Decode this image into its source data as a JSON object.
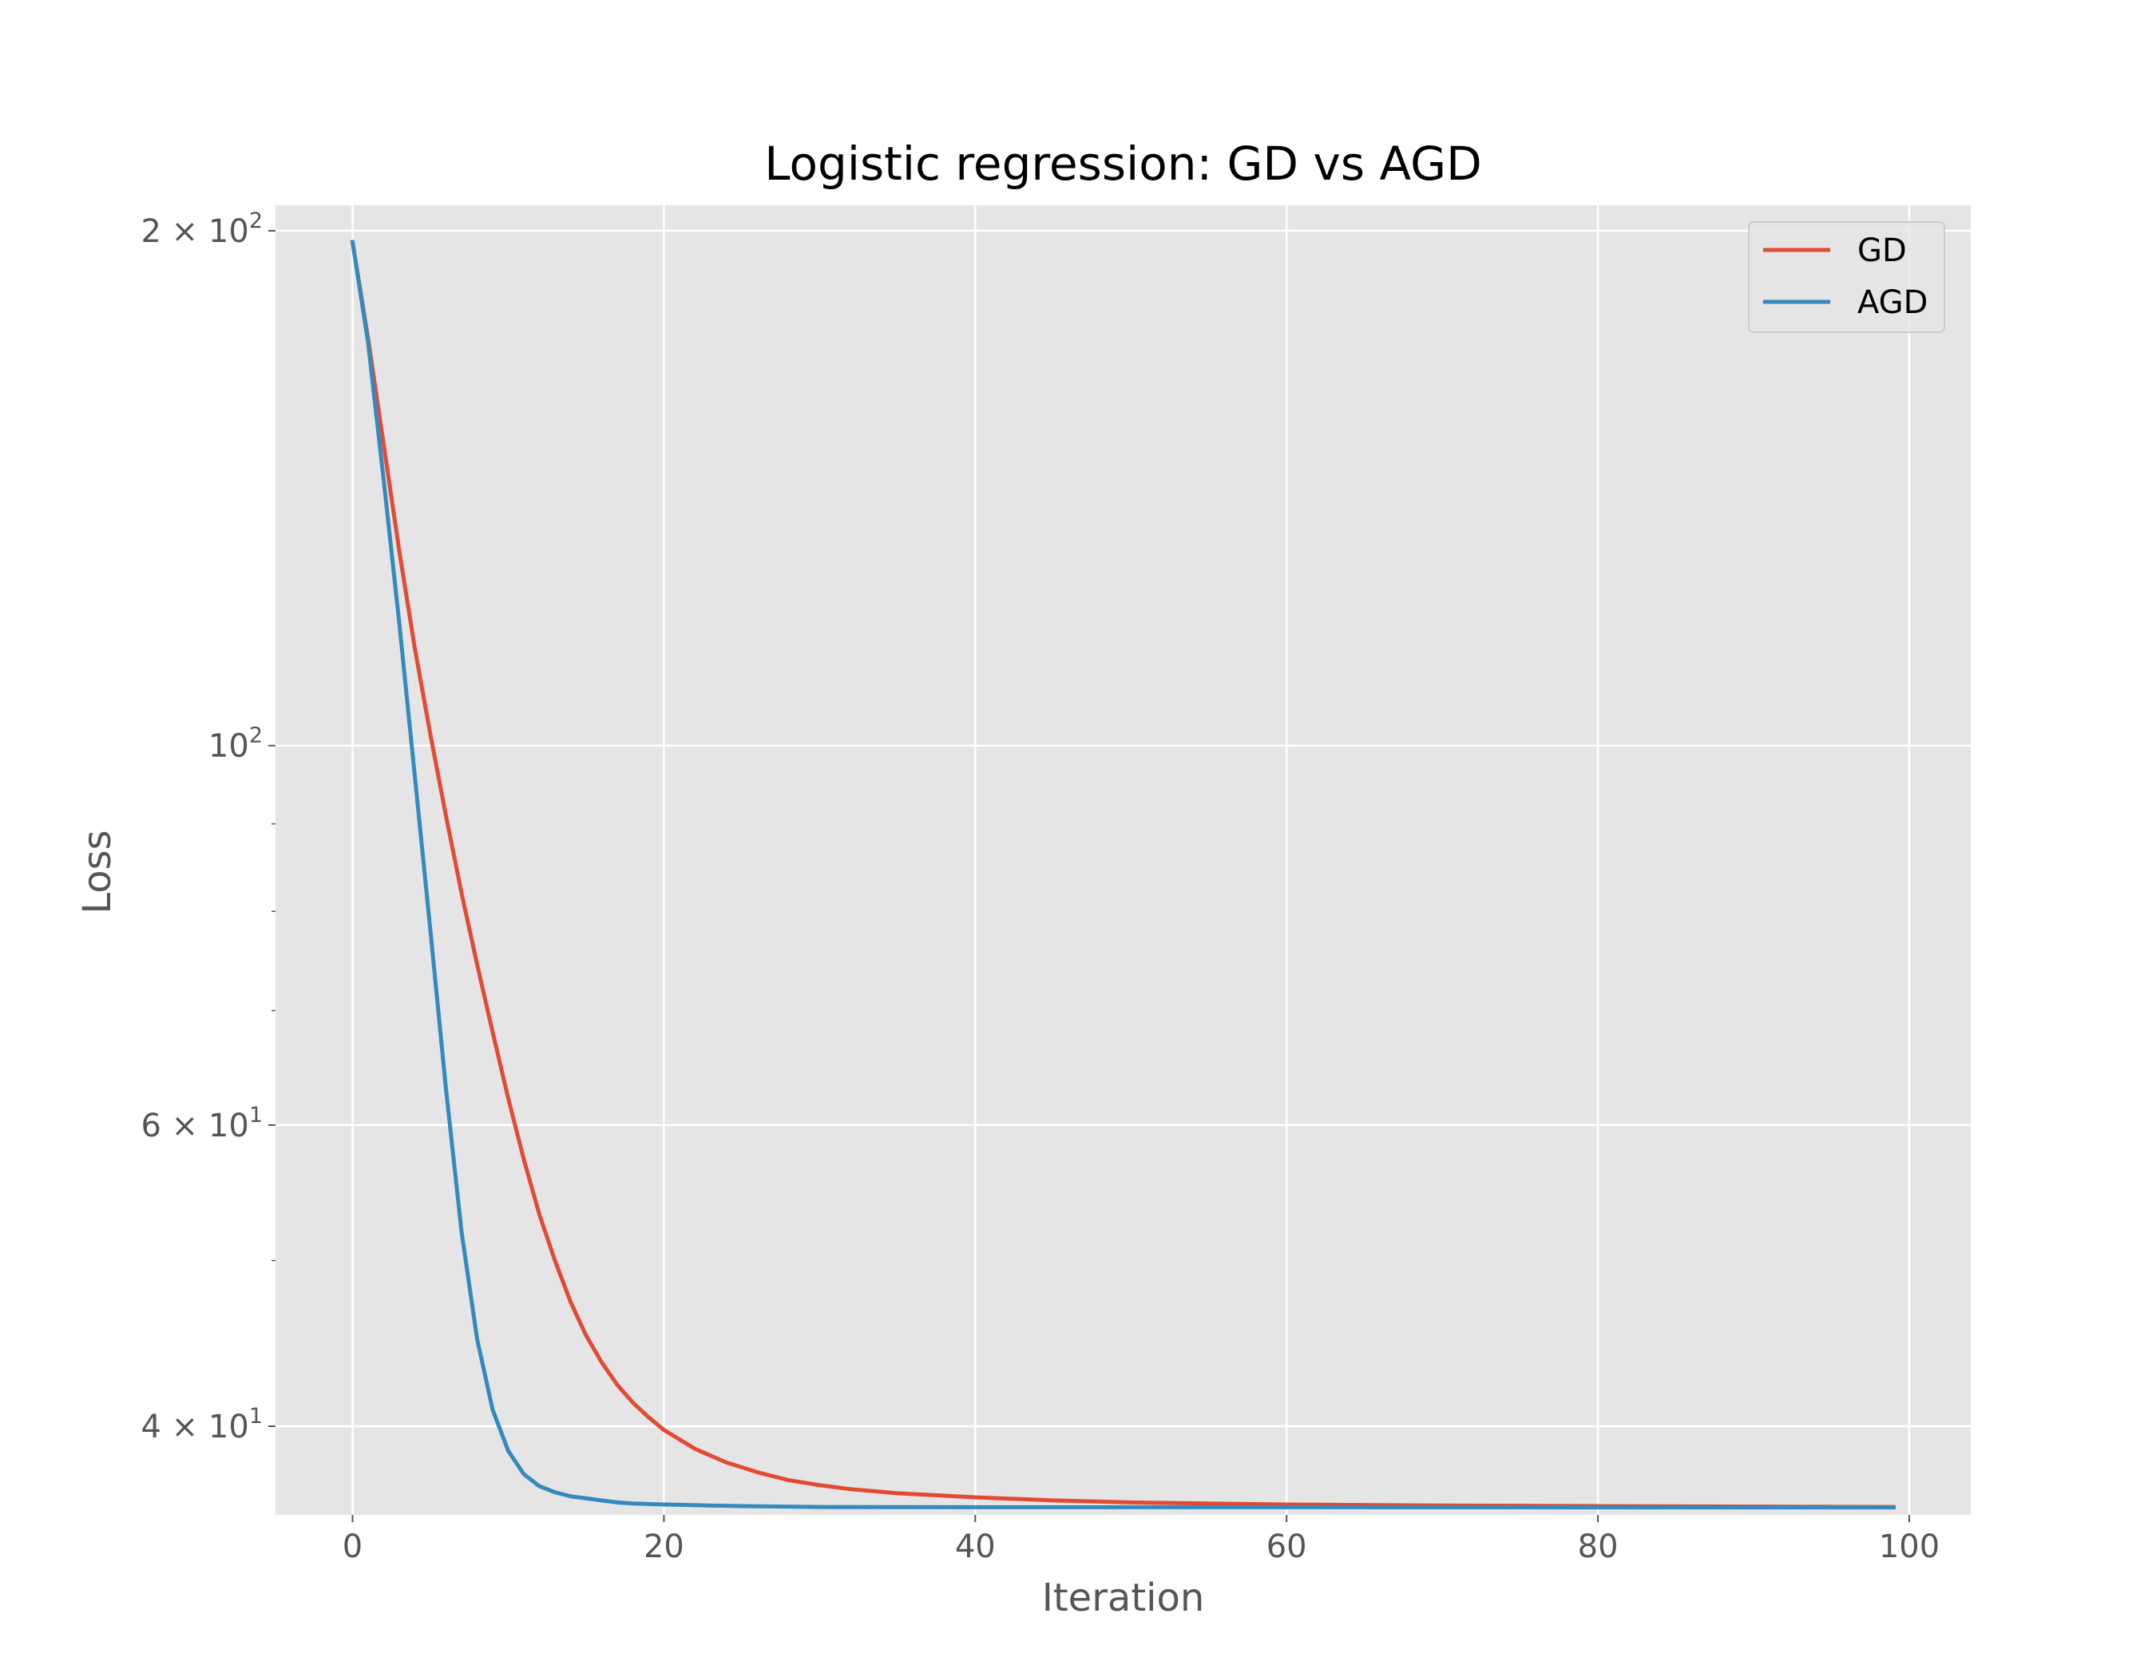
{
  "chart_data": {
    "type": "line",
    "title": "Logistic regression: GD vs AGD",
    "xlabel": "Iteration",
    "ylabel": "Loss",
    "xlim": [
      -4.95,
      103.95
    ],
    "ylim": [
      35.5,
      207
    ],
    "yscale": "log",
    "grid": true,
    "legend_position": "top-right",
    "x_ticks": [
      0,
      20,
      40,
      60,
      80,
      100
    ],
    "x_tick_labels": [
      "0",
      "20",
      "40",
      "60",
      "80",
      "100"
    ],
    "y_major_ticks": [
      {
        "value": 200,
        "mantissa": "2",
        "base": "10",
        "exp": "2"
      },
      {
        "value": 100,
        "mantissa": "",
        "base": "10",
        "exp": "2"
      },
      {
        "value": 60,
        "mantissa": "6",
        "base": "10",
        "exp": "1"
      },
      {
        "value": 40,
        "mantissa": "4",
        "base": "10",
        "exp": "1"
      }
    ],
    "y_minor_ticks": [
      90,
      80,
      70,
      50
    ],
    "colors": {
      "background": "#e5e5e5",
      "grid": "#ffffff",
      "GD": "#e24a33",
      "AGD": "#348abd"
    },
    "series": [
      {
        "name": "GD",
        "color": "#e24a33",
        "points": [
          [
            0,
            197
          ],
          [
            1,
            173
          ],
          [
            2,
            150
          ],
          [
            3,
            130
          ],
          [
            4,
            114
          ],
          [
            5,
            101.5
          ],
          [
            6,
            91
          ],
          [
            7,
            82
          ],
          [
            8,
            74.5
          ],
          [
            9,
            68
          ],
          [
            10,
            62.2
          ],
          [
            11,
            57.3
          ],
          [
            12,
            53.2
          ],
          [
            13,
            50
          ],
          [
            14,
            47.3
          ],
          [
            15,
            45.2
          ],
          [
            16,
            43.6
          ],
          [
            17,
            42.3
          ],
          [
            18,
            41.3
          ],
          [
            19,
            40.5
          ],
          [
            20,
            39.8
          ],
          [
            22,
            38.8
          ],
          [
            24,
            38.1
          ],
          [
            26,
            37.6
          ],
          [
            28,
            37.2
          ],
          [
            30,
            36.95
          ],
          [
            32,
            36.75
          ],
          [
            35,
            36.55
          ],
          [
            40,
            36.35
          ],
          [
            45,
            36.2
          ],
          [
            50,
            36.1
          ],
          [
            55,
            36.05
          ],
          [
            60,
            36.0
          ],
          [
            70,
            35.95
          ],
          [
            80,
            35.92
          ],
          [
            90,
            35.9
          ],
          [
            99,
            35.88
          ]
        ]
      },
      {
        "name": "AGD",
        "color": "#348abd",
        "points": [
          [
            0,
            197
          ],
          [
            1,
            172
          ],
          [
            2,
            143
          ],
          [
            3,
            118
          ],
          [
            4,
            96
          ],
          [
            5,
            78
          ],
          [
            6,
            63
          ],
          [
            7,
            52
          ],
          [
            8,
            45
          ],
          [
            9,
            40.9
          ],
          [
            10,
            38.7
          ],
          [
            11,
            37.5
          ],
          [
            12,
            36.9
          ],
          [
            13,
            36.6
          ],
          [
            14,
            36.4
          ],
          [
            15,
            36.3
          ],
          [
            16,
            36.2
          ],
          [
            17,
            36.1
          ],
          [
            18,
            36.05
          ],
          [
            20,
            36.0
          ],
          [
            25,
            35.92
          ],
          [
            30,
            35.88
          ],
          [
            40,
            35.87
          ],
          [
            60,
            35.87
          ],
          [
            80,
            35.86
          ],
          [
            99,
            35.86
          ]
        ]
      }
    ]
  }
}
